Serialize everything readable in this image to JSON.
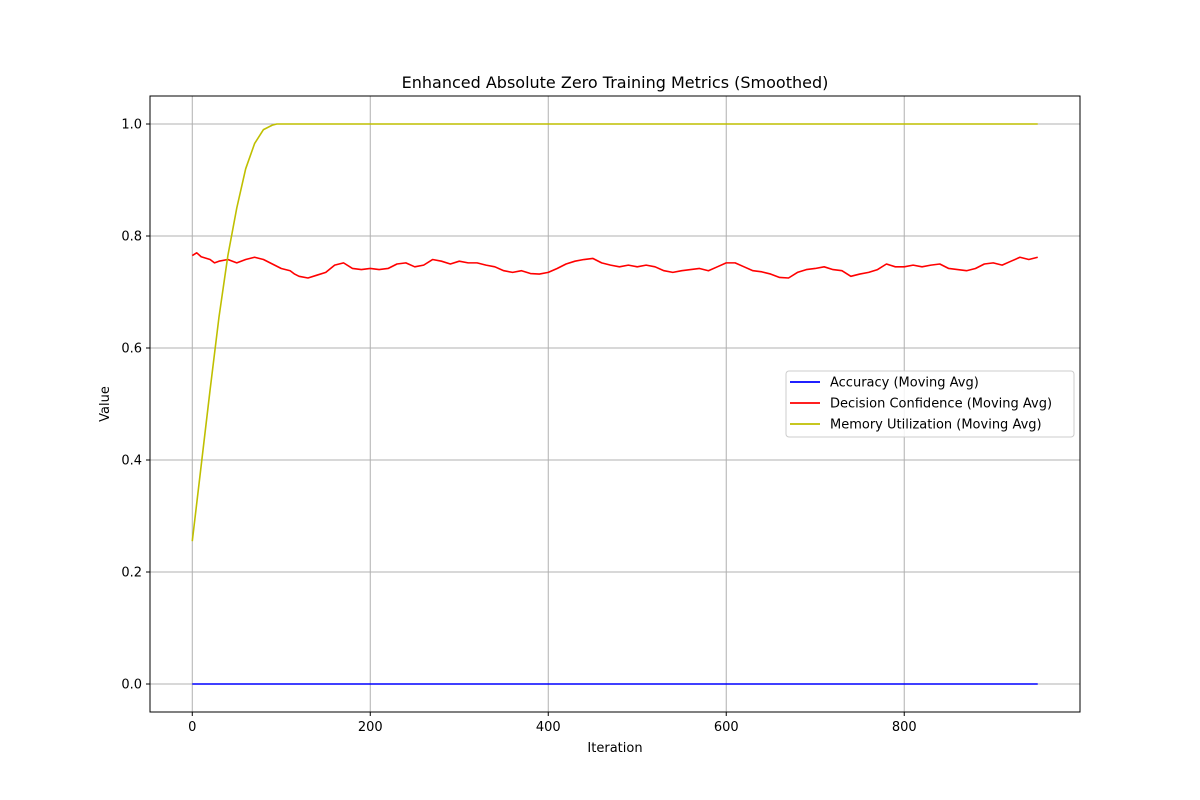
{
  "chart_data": {
    "type": "line",
    "title": "Enhanced Absolute Zero Training Metrics (Smoothed)",
    "xlabel": "Iteration",
    "ylabel": "Value",
    "xlim": [
      -47.5,
      997.5
    ],
    "ylim": [
      -0.05,
      1.05
    ],
    "xticks": [
      0,
      200,
      400,
      600,
      800
    ],
    "yticks": [
      0.0,
      0.2,
      0.4,
      0.6,
      0.8,
      1.0
    ],
    "xtick_labels": [
      "0",
      "200",
      "400",
      "600",
      "800"
    ],
    "ytick_labels": [
      "0.0",
      "0.2",
      "0.4",
      "0.6",
      "0.8",
      "1.0"
    ],
    "grid": true,
    "legend_placement": "center-right",
    "series": [
      {
        "name": "Accuracy (Moving Avg)",
        "color": "#0000ff",
        "x": [
          0,
          950
        ],
        "y": [
          0.0,
          0.0
        ]
      },
      {
        "name": "Decision Confidence (Moving Avg)",
        "color": "#ff0000",
        "x": [
          0,
          5,
          10,
          20,
          25,
          30,
          40,
          50,
          60,
          70,
          80,
          90,
          100,
          110,
          115,
          120,
          130,
          140,
          150,
          160,
          170,
          180,
          190,
          200,
          210,
          220,
          230,
          240,
          250,
          260,
          270,
          280,
          290,
          300,
          310,
          320,
          330,
          340,
          350,
          360,
          370,
          380,
          390,
          400,
          410,
          420,
          430,
          440,
          450,
          460,
          470,
          480,
          490,
          500,
          510,
          520,
          530,
          540,
          550,
          560,
          570,
          580,
          590,
          600,
          610,
          620,
          630,
          640,
          650,
          660,
          670,
          680,
          690,
          700,
          710,
          720,
          730,
          740,
          750,
          760,
          770,
          780,
          790,
          800,
          810,
          820,
          830,
          840,
          850,
          860,
          870,
          880,
          890,
          900,
          910,
          920,
          930,
          940,
          950
        ],
        "y": [
          0.765,
          0.77,
          0.763,
          0.758,
          0.752,
          0.755,
          0.758,
          0.752,
          0.758,
          0.762,
          0.758,
          0.75,
          0.742,
          0.738,
          0.732,
          0.728,
          0.725,
          0.73,
          0.735,
          0.748,
          0.752,
          0.742,
          0.74,
          0.742,
          0.74,
          0.742,
          0.75,
          0.752,
          0.745,
          0.748,
          0.758,
          0.755,
          0.75,
          0.755,
          0.752,
          0.752,
          0.748,
          0.745,
          0.738,
          0.735,
          0.738,
          0.733,
          0.732,
          0.735,
          0.742,
          0.75,
          0.755,
          0.758,
          0.76,
          0.752,
          0.748,
          0.745,
          0.748,
          0.745,
          0.748,
          0.745,
          0.738,
          0.735,
          0.738,
          0.74,
          0.742,
          0.738,
          0.745,
          0.752,
          0.752,
          0.745,
          0.738,
          0.736,
          0.732,
          0.726,
          0.725,
          0.735,
          0.74,
          0.742,
          0.745,
          0.74,
          0.738,
          0.728,
          0.732,
          0.735,
          0.74,
          0.75,
          0.745,
          0.745,
          0.748,
          0.745,
          0.748,
          0.75,
          0.742,
          0.74,
          0.738,
          0.742,
          0.75,
          0.752,
          0.748,
          0.755,
          0.762,
          0.758,
          0.762
        ]
      },
      {
        "name": "Memory Utilization (Moving Avg)",
        "color": "#bfbf00",
        "x": [
          0,
          10,
          20,
          30,
          40,
          50,
          60,
          70,
          80,
          90,
          95,
          100,
          950
        ],
        "y": [
          0.255,
          0.39,
          0.525,
          0.655,
          0.765,
          0.85,
          0.92,
          0.965,
          0.99,
          0.998,
          1.0,
          1.0,
          1.0
        ]
      }
    ]
  }
}
